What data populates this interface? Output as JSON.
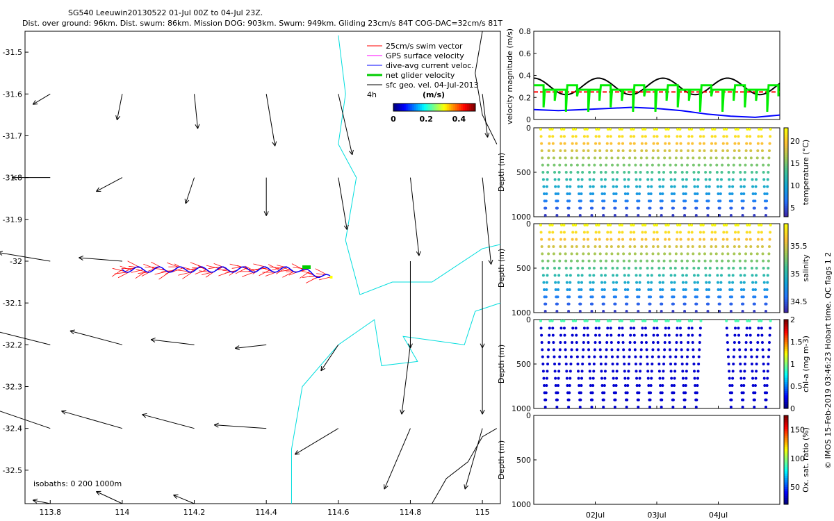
{
  "chart_data": [
    {
      "type": "map",
      "title": "SG540 Leeuwin20130522 01-Jul 00Z to 04-Jul 23Z.",
      "subtitle": "Dist. over ground: 96km. Dist. swum: 86km. Mission DOG: 903km. Swum: 949km. Gliding 23cm/s 84T COG-DAC=32cm/s 81T",
      "xlim": [
        113.73,
        115.05
      ],
      "ylim": [
        -32.58,
        -31.45
      ],
      "xticks": [
        113.8,
        114,
        114.2,
        114.4,
        114.6,
        114.8,
        115
      ],
      "yticks": [
        -31.5,
        -31.6,
        -31.7,
        -31.8,
        -31.9,
        -32,
        -32.1,
        -32.2,
        -32.3,
        -32.4,
        -32.5
      ],
      "legend": [
        {
          "label": "25cm/s swim vector",
          "color": "#ff0000"
        },
        {
          "label": "GPS surface velocity",
          "color": "#ff00ff"
        },
        {
          "label": "dive-avg current veloc.",
          "color": "#0000ff"
        },
        {
          "label": "net glider velocity",
          "color": "#00cc00"
        },
        {
          "label": "sfc geo. vel. 04-Jul-2013",
          "color": "#000000"
        }
      ],
      "legend_note": "4h",
      "colorbar": {
        "label": "(m/s)",
        "ticks": [
          "0",
          "0.2",
          "0.4"
        ],
        "range": [
          0,
          0.5
        ]
      },
      "isobath_note": "isobaths: 0   200  1000m",
      "track": {
        "lon_start": 114.0,
        "lon_end": 114.58,
        "lat": -32.02
      },
      "geo_vectors": [
        {
          "lon": 113.8,
          "lat": -31.6,
          "u": -0.1,
          "v": -0.06
        },
        {
          "lon": 114.0,
          "lat": -31.6,
          "u": -0.03,
          "v": -0.15
        },
        {
          "lon": 114.2,
          "lat": -31.6,
          "u": 0.02,
          "v": -0.2
        },
        {
          "lon": 114.4,
          "lat": -31.6,
          "u": 0.05,
          "v": -0.3
        },
        {
          "lon": 114.6,
          "lat": -31.6,
          "u": 0.08,
          "v": -0.35
        },
        {
          "lon": 114.8,
          "lat": -31.6,
          "u": 0.0,
          "v": 0.0
        },
        {
          "lon": 115.0,
          "lat": -31.6,
          "u": 0.03,
          "v": -0.25
        },
        {
          "lon": 113.8,
          "lat": -31.8,
          "u": -0.22,
          "v": 0.0
        },
        {
          "lon": 114.0,
          "lat": -31.8,
          "u": -0.15,
          "v": -0.08
        },
        {
          "lon": 114.2,
          "lat": -31.8,
          "u": -0.05,
          "v": -0.15
        },
        {
          "lon": 114.4,
          "lat": -31.8,
          "u": 0.0,
          "v": -0.22
        },
        {
          "lon": 114.6,
          "lat": -31.8,
          "u": 0.05,
          "v": -0.3
        },
        {
          "lon": 114.8,
          "lat": -31.8,
          "u": 0.05,
          "v": -0.45
        },
        {
          "lon": 115.0,
          "lat": -31.8,
          "u": 0.05,
          "v": -0.5
        },
        {
          "lon": 113.8,
          "lat": -32.0,
          "u": -0.3,
          "v": 0.05
        },
        {
          "lon": 114.0,
          "lat": -32.0,
          "u": -0.25,
          "v": 0.02
        },
        {
          "lon": 114.8,
          "lat": -32.0,
          "u": 0.0,
          "v": -0.5
        },
        {
          "lon": 115.0,
          "lat": -32.0,
          "u": 0.0,
          "v": -0.5
        },
        {
          "lon": 113.8,
          "lat": -32.2,
          "u": -0.32,
          "v": 0.08
        },
        {
          "lon": 114.0,
          "lat": -32.2,
          "u": -0.3,
          "v": 0.08
        },
        {
          "lon": 114.2,
          "lat": -32.2,
          "u": -0.25,
          "v": 0.03
        },
        {
          "lon": 114.4,
          "lat": -32.2,
          "u": -0.18,
          "v": -0.02
        },
        {
          "lon": 114.6,
          "lat": -32.2,
          "u": -0.1,
          "v": -0.15
        },
        {
          "lon": 114.8,
          "lat": -32.2,
          "u": -0.05,
          "v": -0.4
        },
        {
          "lon": 115.0,
          "lat": -32.2,
          "u": 0.0,
          "v": -0.4
        },
        {
          "lon": 113.8,
          "lat": -32.4,
          "u": -0.35,
          "v": 0.12
        },
        {
          "lon": 114.0,
          "lat": -32.4,
          "u": -0.35,
          "v": 0.1
        },
        {
          "lon": 114.2,
          "lat": -32.4,
          "u": -0.3,
          "v": 0.08
        },
        {
          "lon": 114.4,
          "lat": -32.4,
          "u": -0.3,
          "v": 0.02
        },
        {
          "lon": 114.6,
          "lat": -32.4,
          "u": -0.25,
          "v": -0.15
        },
        {
          "lon": 114.8,
          "lat": -32.4,
          "u": -0.15,
          "v": -0.35
        },
        {
          "lon": 115.0,
          "lat": -32.4,
          "u": -0.1,
          "v": -0.35
        },
        {
          "lon": 113.8,
          "lat": -32.58,
          "u": -0.1,
          "v": 0.02
        },
        {
          "lon": 114.0,
          "lat": -32.58,
          "u": -0.15,
          "v": 0.07
        },
        {
          "lon": 114.2,
          "lat": -32.58,
          "u": -0.12,
          "v": 0.05
        }
      ]
    },
    {
      "type": "line",
      "ylabel": "velocity magnitude (m/s)",
      "ylim": [
        0,
        0.8
      ],
      "yticks": [
        0,
        0.2,
        0.4,
        0.6,
        0.8
      ],
      "series": [
        {
          "name": "sfc geo. vel.",
          "color": "#000000",
          "mean": 0.3,
          "amp": 0.075,
          "period_days": 1.05
        },
        {
          "name": "net glider velocity",
          "color": "#00ee00",
          "level": 0.28,
          "spikes": 0.2
        },
        {
          "name": "25cm/s swim vector",
          "color": "#ff0000",
          "value": 0.25
        },
        {
          "name": "dive-avg current veloc.",
          "color": "#0000ff",
          "values": [
            0.09,
            0.08,
            0.09,
            0.1,
            0.11,
            0.1,
            0.08,
            0.05,
            0.03,
            0.02,
            0.04
          ]
        }
      ]
    },
    {
      "type": "scatter",
      "ylabel": "Depth (m)",
      "cbar_label": "temperature (°C)",
      "yticks": [
        "0",
        "500",
        "1000"
      ],
      "cbar_ticks": [
        "5",
        "10",
        "15",
        "20"
      ],
      "cbar_range": [
        3,
        23
      ],
      "dives": 20
    },
    {
      "type": "scatter",
      "ylabel": "Depth (m)",
      "cbar_label": "salinity",
      "yticks": [
        "0",
        "500",
        "1000"
      ],
      "cbar_ticks": [
        "34.5",
        "35",
        "35.5"
      ],
      "cbar_range": [
        34.3,
        35.9
      ],
      "dives": 20
    },
    {
      "type": "scatter",
      "ylabel": "Depth (m)",
      "cbar_label": "chl-a (mg m-3)",
      "yticks": [
        "0",
        "500",
        "1000"
      ],
      "cbar_ticks": [
        "0",
        "0.5",
        "1",
        "1.5",
        "2"
      ],
      "cbar_range": [
        0,
        2
      ],
      "dives": 20
    },
    {
      "type": "scatter",
      "ylabel": "Depth (m)",
      "cbar_label": "Ox. sat. ratio (%)",
      "yticks": [
        "0",
        "500",
        "1000"
      ],
      "cbar_ticks": [
        "50",
        "100",
        "150"
      ],
      "cbar_range": [
        20,
        175
      ],
      "dives": 0
    },
    {
      "type": "time_axis",
      "xticks": [
        "02Jul",
        "03Jul",
        "04Jul"
      ]
    }
  ],
  "credit": "© IMOS 15-Feb-2019 03:46:23 Hobart time. QC flags 1  2"
}
